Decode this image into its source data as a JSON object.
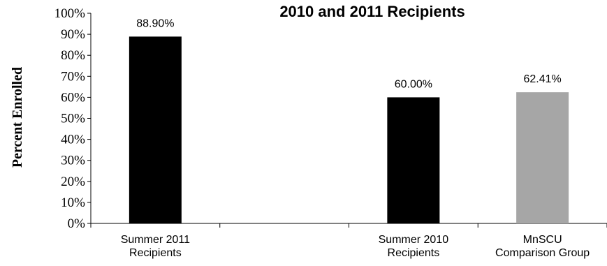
{
  "chart_data": {
    "type": "bar",
    "title": "2010 and 2011 Recipients",
    "ylabel": "Percent Enrolled",
    "xlabel": "",
    "ylim": [
      0,
      100
    ],
    "yticks": [
      "0%",
      "10%",
      "20%",
      "30%",
      "40%",
      "50%",
      "60%",
      "70%",
      "80%",
      "90%",
      "100%"
    ],
    "categories": [
      [
        "Summer 2011",
        "Recipients"
      ],
      [
        "",
        ""
      ],
      [
        "Summer 2010",
        "Recipients"
      ],
      [
        "MnSCU",
        "Comparison Group"
      ]
    ],
    "values": [
      88.9,
      null,
      60.0,
      62.41
    ],
    "data_labels": [
      "88.90%",
      "",
      "60.00%",
      "62.41%"
    ],
    "bar_colors": [
      "#000000",
      "#000000",
      "#000000",
      "#a6a6a6"
    ],
    "grid": false,
    "legend": "none"
  }
}
